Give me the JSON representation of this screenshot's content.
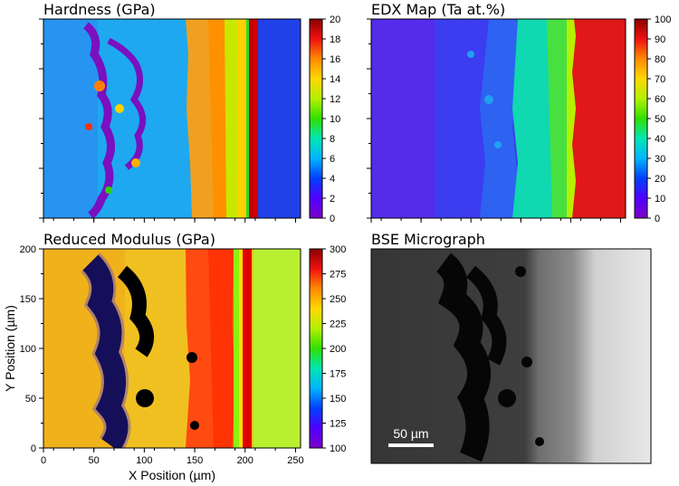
{
  "panels": {
    "hardness": {
      "title": "Hardness (GPa)"
    },
    "edx": {
      "title": "EDX Map (Ta at.%)"
    },
    "modulus": {
      "title": "Reduced Modulus (GPa)"
    },
    "bse": {
      "title": "BSE Micrograph",
      "scale_bar_label": "50 µm"
    }
  },
  "axes": {
    "xlabel": "X Position (µm)",
    "ylabel": "Y Position (µm)",
    "x_ticks": [
      "0",
      "50",
      "100",
      "150",
      "200",
      "250"
    ],
    "y_ticks": [
      "0",
      "50",
      "100",
      "150",
      "200"
    ]
  },
  "chart_data": [
    {
      "type": "heatmap",
      "title": "Hardness (GPa)",
      "colorscale": "rainbow",
      "colorbar": {
        "ticks": [
          0,
          2,
          4,
          6,
          8,
          10,
          12,
          14,
          16,
          18,
          20
        ],
        "range": [
          0,
          20
        ]
      },
      "x_range": [
        0,
        255
      ],
      "y_range": [
        0,
        200
      ],
      "regions": [
        {
          "x": [
            0,
            150
          ],
          "value": 5,
          "note": "Ta matrix"
        },
        {
          "x": [
            150,
            175
          ],
          "value": 12
        },
        {
          "x": [
            175,
            195
          ],
          "value": 10
        },
        {
          "x": [
            195,
            205
          ],
          "value": 19
        },
        {
          "x": [
            205,
            255
          ],
          "value": 3
        }
      ]
    },
    {
      "type": "heatmap",
      "title": "EDX Map (Ta at.%)",
      "colorscale": "rainbow",
      "colorbar": {
        "ticks": [
          0,
          10,
          20,
          30,
          40,
          50,
          60,
          70,
          80,
          90,
          100
        ],
        "range": [
          0,
          100
        ]
      },
      "x_range": [
        0,
        255
      ],
      "y_range": [
        0,
        200
      ],
      "regions": [
        {
          "x": [
            0,
            130
          ],
          "value": 10
        },
        {
          "x": [
            130,
            150
          ],
          "value": 35
        },
        {
          "x": [
            150,
            180
          ],
          "value": 45
        },
        {
          "x": [
            180,
            195
          ],
          "value": 55
        },
        {
          "x": [
            195,
            255
          ],
          "value": 92
        }
      ]
    },
    {
      "type": "heatmap",
      "title": "Reduced Modulus (GPa)",
      "colorscale": "rainbow",
      "colorbar": {
        "ticks": [
          100,
          125,
          150,
          175,
          200,
          225,
          250,
          275,
          300
        ],
        "range": [
          100,
          300
        ]
      },
      "x_range": [
        0,
        255
      ],
      "y_range": [
        0,
        200
      ],
      "regions": [
        {
          "x": [
            0,
            150
          ],
          "value": 215
        },
        {
          "x": [
            150,
            190
          ],
          "value": 275
        },
        {
          "x": [
            190,
            200
          ],
          "value": 195
        },
        {
          "x": [
            200,
            210
          ],
          "value": 290
        },
        {
          "x": [
            210,
            255
          ],
          "value": 180
        }
      ]
    }
  ]
}
